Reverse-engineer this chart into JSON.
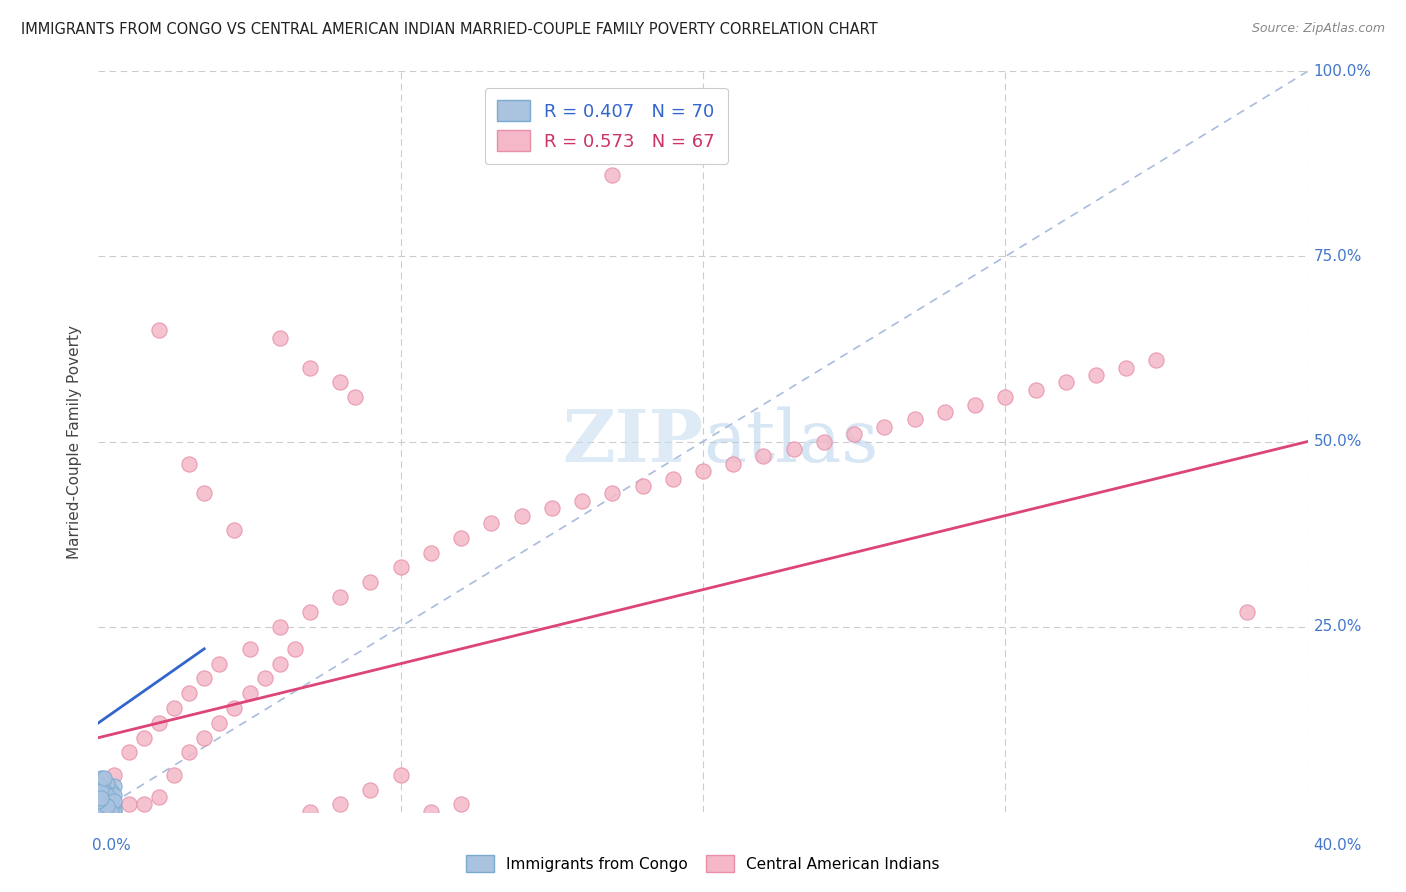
{
  "title": "IMMIGRANTS FROM CONGO VS CENTRAL AMERICAN INDIAN MARRIED-COUPLE FAMILY POVERTY CORRELATION CHART",
  "source": "Source: ZipAtlas.com",
  "ylabel_axis": "Married-Couple Family Poverty",
  "xlim": [
    0.0,
    0.4
  ],
  "ylim": [
    0.0,
    1.0
  ],
  "legend_blue_r": "R = 0.407",
  "legend_blue_n": "N = 70",
  "legend_pink_r": "R = 0.573",
  "legend_pink_n": "N = 67",
  "legend_blue_label": "Immigrants from Congo",
  "legend_pink_label": "Central American Indians",
  "blue_color": "#aac4e0",
  "blue_edge": "#7aaace",
  "pink_color": "#f4b8c8",
  "pink_edge": "#e890a8",
  "blue_trend_color": "#3366cc",
  "pink_trend_color": "#dd4477",
  "ref_line_color": "#aabbdd",
  "bg_color": "#ffffff",
  "grid_color": "#cccccc",
  "label_color": "#4477cc",
  "watermark_color": "#cce0f0",
  "blue_scatter": [
    [
      0.001,
      0.0
    ],
    [
      0.002,
      0.005
    ],
    [
      0.001,
      0.01
    ],
    [
      0.003,
      0.0
    ],
    [
      0.0,
      0.015
    ],
    [
      0.002,
      0.02
    ],
    [
      0.001,
      0.025
    ],
    [
      0.0,
      0.03
    ],
    [
      0.004,
      0.005
    ],
    [
      0.002,
      0.015
    ],
    [
      0.003,
      0.01
    ],
    [
      0.001,
      0.005
    ],
    [
      0.0,
      0.005
    ],
    [
      0.005,
      0.0
    ],
    [
      0.002,
      0.03
    ],
    [
      0.001,
      0.02
    ],
    [
      0.003,
      0.015
    ],
    [
      0.0,
      0.0
    ],
    [
      0.001,
      0.01
    ],
    [
      0.004,
      0.01
    ],
    [
      0.0,
      0.04
    ],
    [
      0.002,
      0.01
    ],
    [
      0.001,
      0.0
    ],
    [
      0.003,
      0.025
    ],
    [
      0.0,
      0.02
    ],
    [
      0.005,
      0.005
    ],
    [
      0.001,
      0.008
    ],
    [
      0.002,
      0.0
    ],
    [
      0.0,
      0.035
    ],
    [
      0.004,
      0.015
    ],
    [
      0.001,
      0.03
    ],
    [
      0.003,
      0.0
    ],
    [
      0.002,
      0.02
    ],
    [
      0.0,
      0.0
    ],
    [
      0.001,
      0.008
    ],
    [
      0.005,
      0.035
    ],
    [
      0.002,
      0.025
    ],
    [
      0.0,
      0.012
    ],
    [
      0.003,
      0.008
    ],
    [
      0.001,
      0.0
    ],
    [
      0.004,
      0.02
    ],
    [
      0.002,
      0.0
    ],
    [
      0.0,
      0.028
    ],
    [
      0.003,
      0.012
    ],
    [
      0.001,
      0.035
    ],
    [
      0.005,
      0.0
    ],
    [
      0.002,
      0.008
    ],
    [
      0.0,
      0.022
    ],
    [
      0.004,
      0.028
    ],
    [
      0.001,
      0.0
    ],
    [
      0.003,
      0.038
    ],
    [
      0.002,
      0.015
    ],
    [
      0.0,
      0.008
    ],
    [
      0.005,
      0.022
    ],
    [
      0.001,
      0.045
    ],
    [
      0.003,
      0.0
    ],
    [
      0.004,
      0.008
    ],
    [
      0.002,
      0.028
    ],
    [
      0.0,
      0.0
    ],
    [
      0.001,
      0.015
    ],
    [
      0.003,
      0.022
    ],
    [
      0.005,
      0.015
    ],
    [
      0.002,
      0.0
    ],
    [
      0.0,
      0.038
    ],
    [
      0.004,
      0.0
    ],
    [
      0.001,
      0.028
    ],
    [
      0.003,
      0.008
    ],
    [
      0.002,
      0.045
    ],
    [
      0.0,
      0.015
    ],
    [
      0.001,
      0.018
    ]
  ],
  "pink_scatter": [
    [
      0.005,
      0.05
    ],
    [
      0.01,
      0.08
    ],
    [
      0.015,
      0.1
    ],
    [
      0.02,
      0.12
    ],
    [
      0.025,
      0.14
    ],
    [
      0.03,
      0.16
    ],
    [
      0.035,
      0.18
    ],
    [
      0.04,
      0.2
    ],
    [
      0.05,
      0.22
    ],
    [
      0.06,
      0.25
    ],
    [
      0.07,
      0.27
    ],
    [
      0.08,
      0.29
    ],
    [
      0.09,
      0.31
    ],
    [
      0.1,
      0.33
    ],
    [
      0.11,
      0.35
    ],
    [
      0.12,
      0.37
    ],
    [
      0.13,
      0.39
    ],
    [
      0.14,
      0.4
    ],
    [
      0.15,
      0.41
    ],
    [
      0.16,
      0.42
    ],
    [
      0.17,
      0.43
    ],
    [
      0.18,
      0.44
    ],
    [
      0.19,
      0.45
    ],
    [
      0.2,
      0.46
    ],
    [
      0.21,
      0.47
    ],
    [
      0.22,
      0.48
    ],
    [
      0.23,
      0.49
    ],
    [
      0.24,
      0.5
    ],
    [
      0.25,
      0.51
    ],
    [
      0.26,
      0.52
    ],
    [
      0.27,
      0.53
    ],
    [
      0.28,
      0.54
    ],
    [
      0.29,
      0.55
    ],
    [
      0.3,
      0.56
    ],
    [
      0.31,
      0.57
    ],
    [
      0.32,
      0.58
    ],
    [
      0.33,
      0.59
    ],
    [
      0.34,
      0.6
    ],
    [
      0.35,
      0.61
    ],
    [
      0.38,
      0.27
    ],
    [
      0.01,
      0.01
    ],
    [
      0.02,
      0.02
    ],
    [
      0.025,
      0.05
    ],
    [
      0.03,
      0.08
    ],
    [
      0.035,
      0.1
    ],
    [
      0.04,
      0.12
    ],
    [
      0.045,
      0.14
    ],
    [
      0.05,
      0.16
    ],
    [
      0.055,
      0.18
    ],
    [
      0.06,
      0.2
    ],
    [
      0.065,
      0.22
    ],
    [
      0.07,
      0.0
    ],
    [
      0.08,
      0.01
    ],
    [
      0.09,
      0.03
    ],
    [
      0.1,
      0.05
    ],
    [
      0.11,
      0.0
    ],
    [
      0.12,
      0.01
    ],
    [
      0.06,
      0.64
    ],
    [
      0.07,
      0.6
    ],
    [
      0.08,
      0.58
    ],
    [
      0.085,
      0.56
    ],
    [
      0.17,
      0.86
    ],
    [
      0.02,
      0.65
    ],
    [
      0.03,
      0.47
    ],
    [
      0.035,
      0.43
    ],
    [
      0.045,
      0.38
    ],
    [
      0.015,
      0.01
    ]
  ],
  "pink_trend_x": [
    0.0,
    0.4
  ],
  "pink_trend_y": [
    0.1,
    0.5
  ],
  "blue_trend_x": [
    0.0,
    0.035
  ],
  "blue_trend_y": [
    0.12,
    0.22
  ]
}
